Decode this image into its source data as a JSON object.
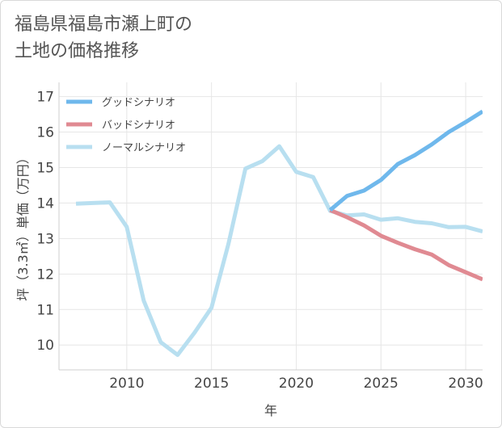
{
  "title_lines": [
    "福島県福島市瀬上町の",
    "土地の価格推移"
  ],
  "colors": {
    "good": "#6fb8ec",
    "bad": "#e08a92",
    "normal": "#b8dff0",
    "grid": "#e6e6e6",
    "axis": "#444444"
  },
  "chart_data": {
    "type": "line",
    "xlabel": "年",
    "ylabel": "坪（3.3㎡）単価（万円）",
    "xlim": [
      2006,
      2031
    ],
    "ylim": [
      9.3,
      17.4
    ],
    "x_ticks": [
      2010,
      2015,
      2020,
      2025,
      2030
    ],
    "y_ticks": [
      10,
      11,
      12,
      13,
      14,
      15,
      16,
      17
    ],
    "grid": true,
    "legend_position": "top-left",
    "series": [
      {
        "name": "グッドシナリオ",
        "color": "#6fb8ec",
        "x": [
          2022,
          2023,
          2024,
          2025,
          2026,
          2027,
          2028,
          2029,
          2030,
          2031
        ],
        "y": [
          13.8,
          14.2,
          14.35,
          14.65,
          15.1,
          15.35,
          15.65,
          16.0,
          16.28,
          16.58
        ]
      },
      {
        "name": "バッドシナリオ",
        "color": "#e08a92",
        "x": [
          2022,
          2023,
          2024,
          2025,
          2026,
          2027,
          2028,
          2029,
          2030,
          2031
        ],
        "y": [
          13.8,
          13.6,
          13.37,
          13.08,
          12.88,
          12.7,
          12.55,
          12.25,
          12.05,
          11.85
        ]
      },
      {
        "name": "ノーマルシナリオ",
        "color": "#b8dff0",
        "x": [
          2007,
          2008,
          2009,
          2010,
          2011,
          2012,
          2013,
          2014,
          2015,
          2016,
          2017,
          2018,
          2019,
          2020,
          2021,
          2022,
          2023,
          2024,
          2025,
          2026,
          2027,
          2028,
          2029,
          2030,
          2031
        ],
        "y": [
          13.98,
          14.0,
          14.02,
          13.33,
          11.25,
          10.08,
          9.72,
          10.35,
          11.05,
          12.85,
          14.97,
          15.18,
          15.6,
          14.88,
          14.73,
          13.78,
          13.65,
          13.68,
          13.53,
          13.57,
          13.47,
          13.43,
          13.32,
          13.33,
          13.2
        ]
      }
    ]
  }
}
